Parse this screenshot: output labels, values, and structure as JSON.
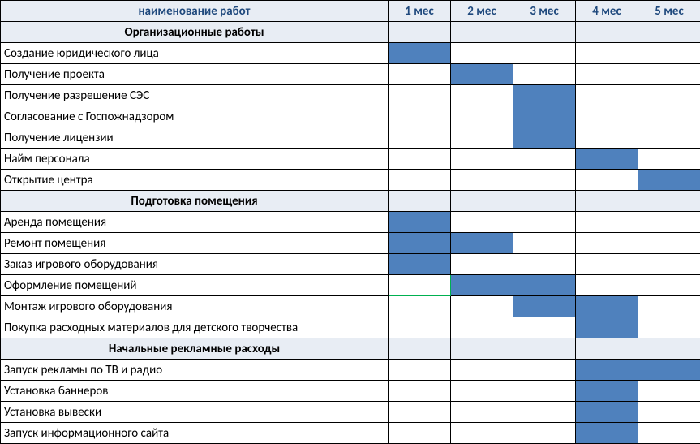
{
  "table": {
    "type": "gantt-table",
    "header": {
      "name_col": "наименование работ",
      "months": [
        "1 мес",
        "2 мес",
        "3 мес",
        "4 мес",
        "5 мес"
      ]
    },
    "column_widths": {
      "name": 478,
      "month": 77
    },
    "colors": {
      "header_bg": "#e8edf4",
      "header_text": "#1f497d",
      "filled": "#4f81bd",
      "border": "#000000",
      "accent_border": "#00b050"
    },
    "fontsize": 15,
    "rows": [
      {
        "type": "section",
        "label": "Организационные работы"
      },
      {
        "type": "task",
        "label": "Создание юридического лица",
        "fill": [
          1
        ]
      },
      {
        "type": "task",
        "label": "Получение проекта",
        "fill": [
          2
        ]
      },
      {
        "type": "task",
        "label": "Получение разрешение СЭС",
        "fill": [
          3
        ]
      },
      {
        "type": "task",
        "label": "Согласование с Госпожнадзором",
        "fill": [
          3
        ]
      },
      {
        "type": "task",
        "label": "Получение лицензии",
        "fill": [
          3
        ]
      },
      {
        "type": "task",
        "label": "Найм персонала",
        "fill": [
          4
        ]
      },
      {
        "type": "task",
        "label": "Открытие центра",
        "fill": [
          5
        ]
      },
      {
        "type": "section",
        "label": "Подготовка помещения"
      },
      {
        "type": "task",
        "label": "Аренда помещения",
        "fill": [
          1
        ]
      },
      {
        "type": "task",
        "label": "Ремонт помещения",
        "fill": [
          1,
          2
        ]
      },
      {
        "type": "task",
        "label": "Заказ игрового оборудования",
        "fill": [
          1
        ]
      },
      {
        "type": "task",
        "label": "Оформление помещений",
        "fill": [
          2,
          3
        ],
        "accent_cell": 1
      },
      {
        "type": "task",
        "label": "Монтаж игрового оборудования",
        "fill": [
          3,
          4
        ]
      },
      {
        "type": "task",
        "label": "Покупка расходных материалов для детского творчества",
        "fill": [
          4
        ]
      },
      {
        "type": "section",
        "label": "Начальные рекламные расходы"
      },
      {
        "type": "task",
        "label": "Запуск рекламы по ТВ и радио",
        "fill": [
          4,
          5
        ]
      },
      {
        "type": "task",
        "label": "Установка баннеров",
        "fill": [
          4
        ]
      },
      {
        "type": "task",
        "label": "Установка вывески",
        "fill": [
          4
        ]
      },
      {
        "type": "task",
        "label": "Запуск информационного сайта",
        "fill": [
          4
        ]
      }
    ]
  }
}
